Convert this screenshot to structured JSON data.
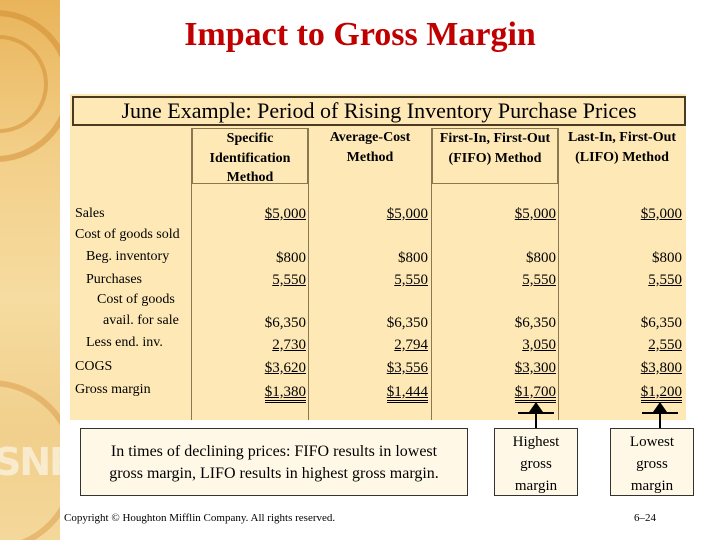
{
  "title": "Impact to Gross Margin",
  "banner": "June Example: Period of Rising Inventory Purchase Prices",
  "columns": [
    {
      "line1": "Specific",
      "line2": "Identification",
      "line3": "Method"
    },
    {
      "line1": "Average-Cost",
      "line2": "Method",
      "line3": ""
    },
    {
      "line1": "First-In, First-Out",
      "line2": "(FIFO) Method",
      "line3": ""
    },
    {
      "line1": "Last-In, First-Out",
      "line2": "(LIFO) Method",
      "line3": ""
    }
  ],
  "rows": {
    "sales": {
      "label": "Sales",
      "values": [
        "$5,000",
        "$5,000",
        "$5,000",
        "$5,000"
      ]
    },
    "cogs_header": {
      "label": "Cost of goods sold"
    },
    "beg_inventory": {
      "label": "Beg. inventory",
      "values": [
        "$800",
        "$800",
        "$800",
        "$800"
      ]
    },
    "purchases": {
      "label": "Purchases",
      "values": [
        "5,550",
        "5,550",
        "5,550",
        "5,550"
      ]
    },
    "cost_avail": {
      "label1": "Cost of goods",
      "label2": "avail. for sale",
      "values": [
        "$6,350",
        "$6,350",
        "$6,350",
        "$6,350"
      ]
    },
    "less_end_inv": {
      "label": "Less end. inv.",
      "values": [
        "2,730",
        "2,794",
        "3,050",
        "2,550"
      ]
    },
    "cogs": {
      "label": "COGS",
      "values": [
        "$3,620",
        "$3,556",
        "$3,300",
        "$3,800"
      ]
    },
    "gross_margin": {
      "label": "Gross margin",
      "values": [
        "$1,380",
        "$1,444",
        "$1,700",
        "$1,200"
      ]
    }
  },
  "note": {
    "line1": "In times of declining prices: FIFO results in lowest",
    "line2": "gross margin, LIFO results in highest gross margin."
  },
  "callouts": [
    {
      "line1": "Highest",
      "line2": "gross",
      "line3": "margin"
    },
    {
      "line1": "Lowest",
      "line2": "gross",
      "line3": "margin"
    }
  ],
  "footer": {
    "copyright": "Copyright © Houghton Mifflin Company.  All rights reserved.",
    "page": "6–24"
  }
}
